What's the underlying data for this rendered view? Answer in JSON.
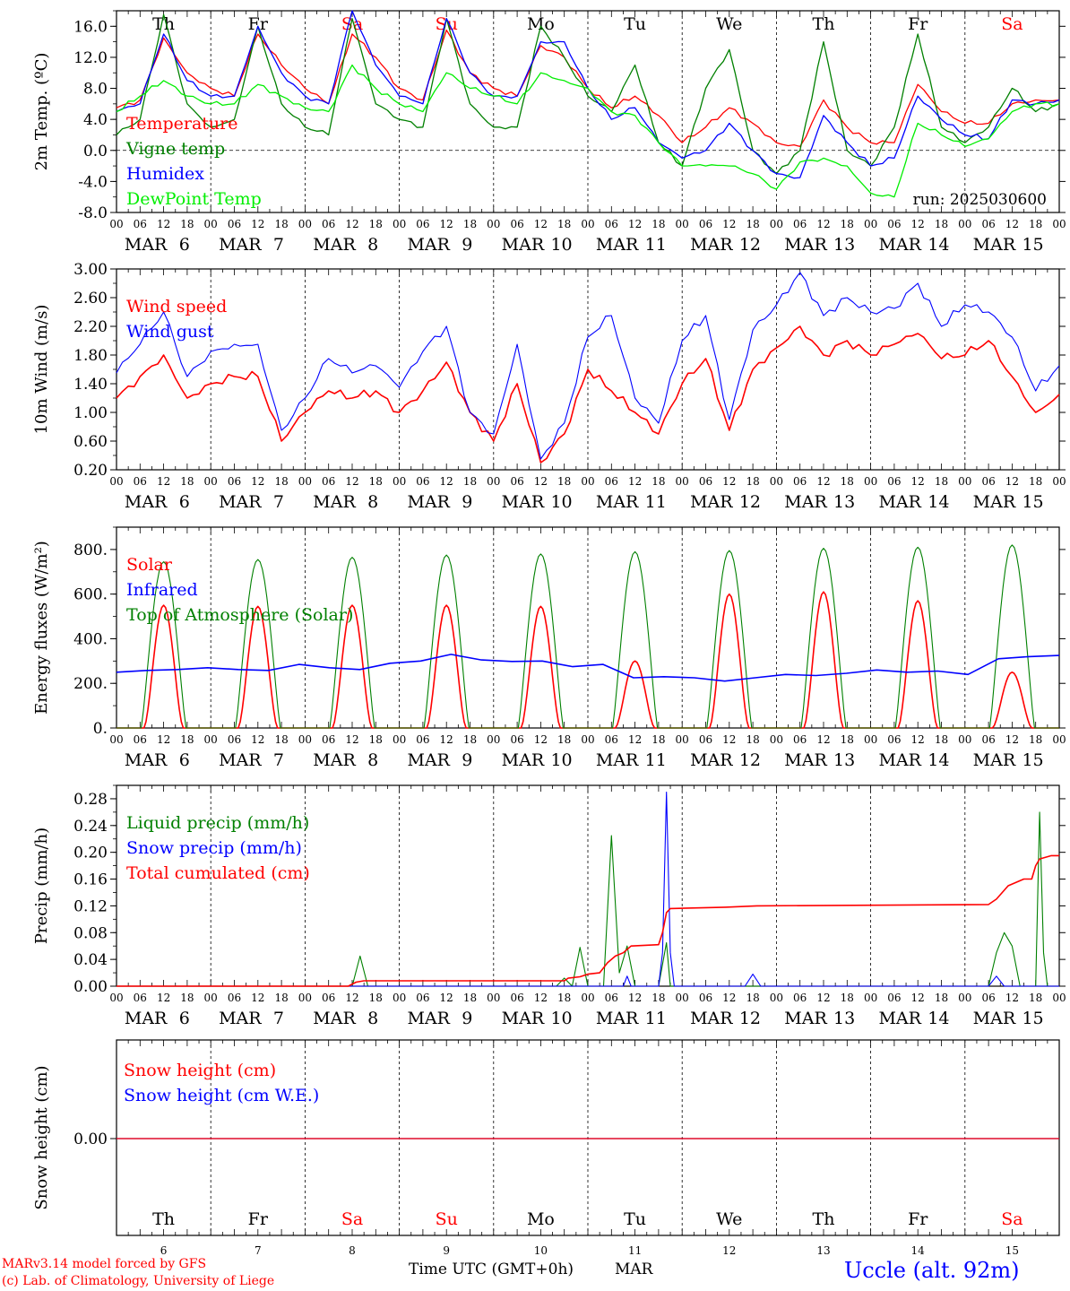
{
  "days": [
    {
      "name": "Th",
      "date": "6",
      "weekend": false
    },
    {
      "name": "Fr",
      "date": "7",
      "weekend": false
    },
    {
      "name": "Sa",
      "date": "8",
      "weekend": true
    },
    {
      "name": "Su",
      "date": "9",
      "weekend": true
    },
    {
      "name": "Mo",
      "date": "10",
      "weekend": false
    },
    {
      "name": "Tu",
      "date": "11",
      "weekend": false
    },
    {
      "name": "We",
      "date": "12",
      "weekend": false
    },
    {
      "name": "Th",
      "date": "13",
      "weekend": false
    },
    {
      "name": "Fr",
      "date": "14",
      "weekend": false
    },
    {
      "name": "Sa",
      "date": "15",
      "weekend": true
    }
  ],
  "month": "MAR",
  "hour_ticks": [
    "00",
    "06",
    "12",
    "18"
  ],
  "last_tick": "00",
  "colors": {
    "red": "#ff0000",
    "darkgreen": "#008000",
    "blue": "#0000ff",
    "lightgreen": "#00ee00",
    "black": "#000000"
  },
  "footer": {
    "model": "MARv3.14 model forced by GFS",
    "lab": "(c) Lab. of Climatology, University of Liege",
    "time_label": "Time UTC (GMT+0h)",
    "month": "MAR",
    "station": "Uccle (alt. 92m)"
  },
  "chart_data": [
    {
      "type": "line",
      "ylabel": "2m Temp. (ºC)",
      "ylim": [
        -8,
        18
      ],
      "yticks": [
        "16.0",
        "12.0",
        "8.0",
        "4.0",
        "0.0",
        "-4.0",
        "-8.0"
      ],
      "run_label": "run: 2025030600",
      "zero_line": true,
      "x_hours": [
        0,
        6,
        12,
        18,
        24,
        30,
        36,
        42,
        48,
        54,
        60,
        66,
        72,
        78,
        84,
        90,
        96,
        102,
        108,
        114,
        120,
        126,
        132,
        138,
        144,
        150,
        156,
        162,
        168,
        174,
        180,
        186,
        192,
        198,
        204,
        210,
        216,
        222,
        228,
        234,
        240
      ],
      "series": [
        {
          "name": "Temperature",
          "color": "red",
          "values": [
            5.5,
            6.5,
            14.5,
            10,
            8,
            7,
            15,
            11,
            8,
            6,
            15,
            12,
            8,
            6.5,
            15.5,
            10,
            8,
            7,
            13.5,
            12,
            8,
            5.5,
            7,
            4.5,
            1,
            3,
            5.5,
            3.5,
            1,
            0.5,
            6.5,
            3,
            1,
            1,
            8.5,
            5,
            3.5,
            3.5,
            6,
            6.5,
            6.5
          ]
        },
        {
          "name": "Vigne temp",
          "color": "darkgreen",
          "values": [
            2,
            4,
            17.5,
            6,
            3,
            4,
            16,
            6,
            3,
            2,
            17,
            6,
            4,
            3,
            17,
            6,
            3,
            3,
            16,
            12,
            7,
            5,
            11,
            1,
            -2,
            8,
            13,
            0,
            -3,
            0,
            14,
            0,
            -2,
            3,
            15,
            3,
            1,
            3,
            8,
            5,
            6
          ]
        },
        {
          "name": "Humidex",
          "color": "blue",
          "values": [
            5,
            6,
            15,
            9,
            7,
            7,
            16,
            10,
            7,
            6,
            18,
            11,
            7,
            6,
            17,
            10,
            7,
            7,
            14,
            14,
            8,
            4,
            5.5,
            1,
            -1,
            0,
            3.5,
            0,
            -3,
            -3.5,
            4.5,
            1,
            -2,
            -1,
            7,
            4,
            2,
            1.5,
            6.5,
            6,
            6.5
          ]
        },
        {
          "name": "DewPoint Temp",
          "color": "lightgreen",
          "values": [
            5,
            7,
            9,
            7,
            6,
            6,
            8.5,
            7,
            5.5,
            5,
            11,
            8,
            6,
            5,
            10,
            8,
            7,
            6,
            10,
            9,
            8,
            5,
            4.5,
            1,
            -2,
            -2,
            -2,
            -3,
            -5,
            -1.5,
            -1,
            -2,
            -5.5,
            -6,
            3.5,
            2,
            0.5,
            1.5,
            5,
            6,
            6
          ]
        }
      ]
    },
    {
      "type": "line",
      "ylabel": "10m Wind (m/s)",
      "ylim": [
        0.2,
        3.0
      ],
      "yticks": [
        "3.00",
        "2.60",
        "2.20",
        "1.80",
        "1.40",
        "1.00",
        "0.60",
        "0.20"
      ],
      "x_hours": [
        0,
        6,
        12,
        18,
        24,
        30,
        36,
        42,
        48,
        54,
        60,
        66,
        72,
        78,
        84,
        90,
        96,
        102,
        108,
        114,
        120,
        126,
        132,
        138,
        144,
        150,
        156,
        162,
        168,
        174,
        180,
        186,
        192,
        198,
        204,
        210,
        216,
        222,
        228,
        234,
        240
      ],
      "series": [
        {
          "name": "Wind speed",
          "color": "red",
          "values": [
            1.2,
            1.5,
            1.8,
            1.2,
            1.4,
            1.5,
            1.5,
            0.6,
            1.0,
            1.3,
            1.2,
            1.3,
            1.0,
            1.3,
            1.7,
            1.0,
            0.6,
            1.4,
            0.3,
            0.7,
            1.6,
            1.3,
            1.0,
            0.7,
            1.4,
            1.75,
            0.75,
            1.6,
            1.9,
            2.2,
            1.8,
            2.0,
            1.8,
            1.95,
            2.1,
            1.75,
            1.8,
            2.0,
            1.5,
            1.0,
            1.25
          ]
        },
        {
          "name": "Wind gust",
          "color": "blue",
          "values": [
            1.55,
            1.95,
            2.4,
            1.5,
            1.85,
            1.95,
            1.95,
            0.75,
            1.2,
            1.75,
            1.55,
            1.65,
            1.35,
            1.85,
            2.2,
            1.0,
            0.7,
            1.95,
            0.35,
            0.85,
            2.05,
            2.35,
            1.2,
            0.85,
            2.0,
            2.35,
            0.9,
            2.15,
            2.5,
            2.95,
            2.35,
            2.6,
            2.4,
            2.45,
            2.8,
            2.2,
            2.5,
            2.4,
            2.05,
            1.3,
            1.65
          ]
        }
      ]
    },
    {
      "type": "line",
      "ylabel": "Energy fluxes (W/m²)",
      "ylim": [
        0,
        900
      ],
      "yticks": [
        "800.",
        "600.",
        "400.",
        "200.",
        "0."
      ],
      "series": [
        {
          "name": "Solar",
          "color": "red",
          "day_peaks": [
            550,
            545,
            550,
            550,
            545,
            300,
            600,
            610,
            570,
            250
          ]
        },
        {
          "name": "Infrared",
          "color": "blue",
          "values": [
            250,
            258,
            262,
            270,
            262,
            258,
            285,
            270,
            262,
            290,
            300,
            330,
            305,
            298,
            300,
            275,
            285,
            225,
            230,
            225,
            210,
            225,
            240,
            235,
            245,
            260,
            250,
            255,
            240,
            310,
            320,
            325
          ]
        },
        {
          "name": "Top of Atmosphere (Solar)",
          "color": "darkgreen",
          "day_peaks": [
            745,
            755,
            765,
            775,
            780,
            790,
            795,
            805,
            810,
            820
          ]
        }
      ]
    },
    {
      "type": "line",
      "ylabel": "Precip (mm/h)",
      "ylim": [
        0,
        0.3
      ],
      "yticks": [
        "0.28",
        "0.24",
        "0.20",
        "0.16",
        "0.12",
        "0.08",
        "0.04",
        "0.00"
      ],
      "series": [
        {
          "name": "Liquid precip (mm/h)",
          "color": "darkgreen",
          "points": [
            [
              0,
              0
            ],
            [
              60,
              0
            ],
            [
              62,
              0.045
            ],
            [
              64,
              0
            ],
            [
              112,
              0
            ],
            [
              114,
              0.012
            ],
            [
              116,
              0
            ],
            [
              118,
              0.058
            ],
            [
              120,
              0
            ],
            [
              124,
              0
            ],
            [
              126,
              0.225
            ],
            [
              128,
              0.02
            ],
            [
              130,
              0.06
            ],
            [
              132,
              0
            ],
            [
              138,
              0
            ],
            [
              140,
              0.065
            ],
            [
              141,
              0
            ],
            [
              142,
              0
            ],
            [
              222,
              0
            ],
            [
              224,
              0.05
            ],
            [
              226,
              0.08
            ],
            [
              228,
              0.06
            ],
            [
              230,
              0
            ],
            [
              234,
              0
            ],
            [
              235,
              0.26
            ],
            [
              236,
              0.05
            ],
            [
              237,
              0
            ],
            [
              240,
              0
            ]
          ]
        },
        {
          "name": "Snow precip (mm/h)",
          "color": "blue",
          "points": [
            [
              0,
              0
            ],
            [
              129,
              0
            ],
            [
              130,
              0.015
            ],
            [
              131,
              0
            ],
            [
              138,
              0
            ],
            [
              139,
              0.05
            ],
            [
              140,
              0.29
            ],
            [
              141,
              0.05
            ],
            [
              142,
              0
            ],
            [
              160,
              0
            ],
            [
              162,
              0.018
            ],
            [
              164,
              0
            ],
            [
              222,
              0
            ],
            [
              224,
              0.015
            ],
            [
              226,
              0
            ],
            [
              240,
              0
            ]
          ]
        },
        {
          "name": "Total cumulated (cm)",
          "color": "red",
          "points": [
            [
              0,
              0
            ],
            [
              59,
              0
            ],
            [
              61,
              0.006
            ],
            [
              63,
              0.008
            ],
            [
              114,
              0.008
            ],
            [
              115,
              0.012
            ],
            [
              118,
              0.014
            ],
            [
              120,
              0.018
            ],
            [
              123,
              0.02
            ],
            [
              125,
              0.035
            ],
            [
              127,
              0.045
            ],
            [
              129,
              0.05
            ],
            [
              131,
              0.06
            ],
            [
              138,
              0.062
            ],
            [
              139,
              0.08
            ],
            [
              140,
              0.11
            ],
            [
              141,
              0.116
            ],
            [
              155,
              0.118
            ],
            [
              163,
              0.12
            ],
            [
              222,
              0.122
            ],
            [
              224,
              0.13
            ],
            [
              227,
              0.15
            ],
            [
              231,
              0.16
            ],
            [
              233,
              0.16
            ],
            [
              234,
              0.18
            ],
            [
              235,
              0.19
            ],
            [
              238,
              0.195
            ],
            [
              240,
              0.195
            ]
          ]
        }
      ]
    },
    {
      "type": "line",
      "ylabel": "Snow height (cm)",
      "yticks": [
        "0.00"
      ],
      "series": [
        {
          "name": "Snow height (cm)",
          "color": "red",
          "values": [
            0,
            0
          ]
        },
        {
          "name": "Snow height (cm W.E.)",
          "color": "blue",
          "values": [
            0,
            0
          ]
        }
      ]
    }
  ]
}
